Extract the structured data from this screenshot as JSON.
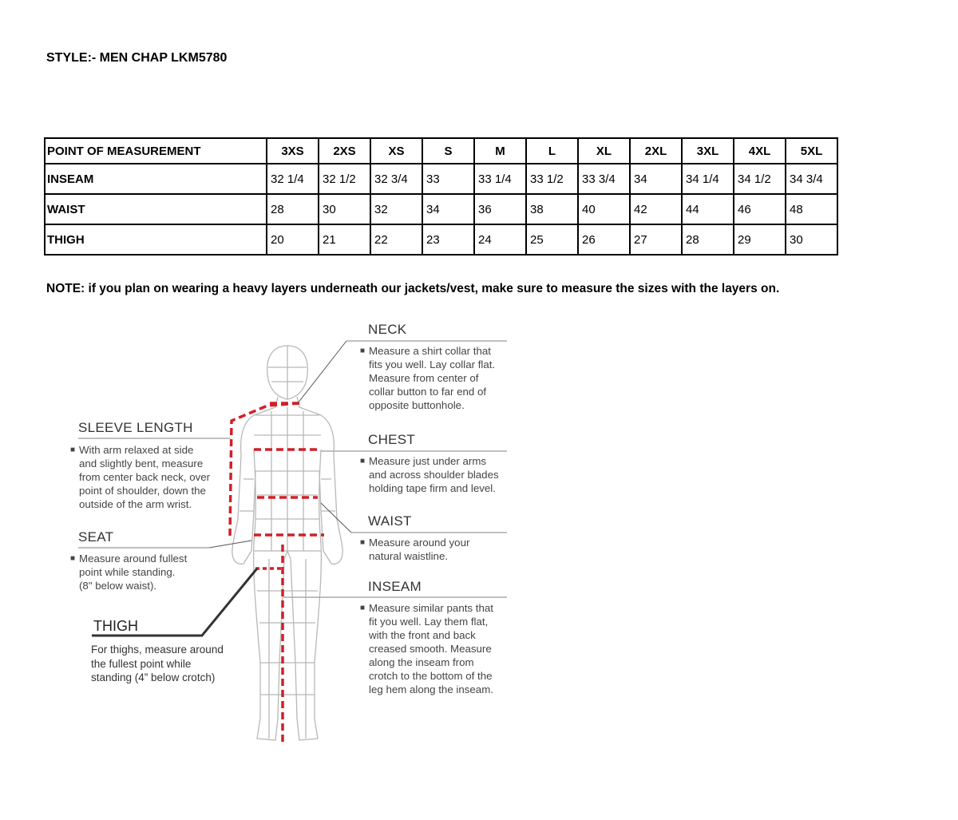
{
  "style_title": "STYLE:- MEN CHAP LKM5780",
  "table": {
    "header": [
      "POINT OF MEASUREMENT",
      "3XS",
      "2XS",
      "XS",
      "S",
      "M",
      "L",
      "XL",
      "2XL",
      "3XL",
      "4XL",
      "5XL"
    ],
    "rows": [
      [
        "INSEAM",
        "32 1/4",
        "32 1/2",
        "32 3/4",
        "33",
        "33 1/4",
        "33 1/2",
        "33 3/4",
        "34",
        "34 1/4",
        "34 1/2",
        "34 3/4"
      ],
      [
        "WAIST",
        "28",
        "30",
        "32",
        "34",
        "36",
        "38",
        "40",
        "42",
        "44",
        "46",
        "48"
      ],
      [
        "THIGH",
        "20",
        "21",
        "22",
        "23",
        "24",
        "25",
        "26",
        "27",
        "28",
        "29",
        "30"
      ]
    ]
  },
  "note": "NOTE: if you plan on wearing a heavy layers underneath our jackets/vest, make sure to measure the sizes with the layers on.",
  "diagram": {
    "accent_color": "#d0202a",
    "neck": {
      "title": "NECK",
      "lines": [
        "Measure a shirt collar that",
        "fits you well. Lay collar flat.",
        "Measure from center of",
        "collar button to far end of",
        "opposite buttonhole."
      ]
    },
    "chest": {
      "title": "CHEST",
      "lines": [
        "Measure just under arms",
        "and across shoulder blades",
        "holding tape firm and level."
      ]
    },
    "waist": {
      "title": "WAIST",
      "lines": [
        "Measure around your",
        "natural waistline."
      ]
    },
    "inseam": {
      "title": "INSEAM",
      "lines": [
        "Measure similar pants that",
        "fit you well. Lay them flat,",
        "with the front and back",
        "creased smooth. Measure",
        "along the inseam from",
        "crotch to the bottom of the",
        "leg hem along the inseam."
      ]
    },
    "sleeve": {
      "title": "SLEEVE LENGTH",
      "lines": [
        "With arm relaxed at side",
        "and slightly bent, measure",
        "from center back neck, over",
        "point of shoulder, down the",
        "outside of the arm wrist."
      ]
    },
    "seat": {
      "title": "SEAT",
      "lines": [
        "Measure around fullest",
        "point while standing.",
        "(8\" below waist)."
      ]
    },
    "thigh": {
      "title": "THIGH",
      "lines": [
        "For thighs, measure around",
        "the fullest point while",
        "standing (4” below crotch)"
      ]
    }
  }
}
